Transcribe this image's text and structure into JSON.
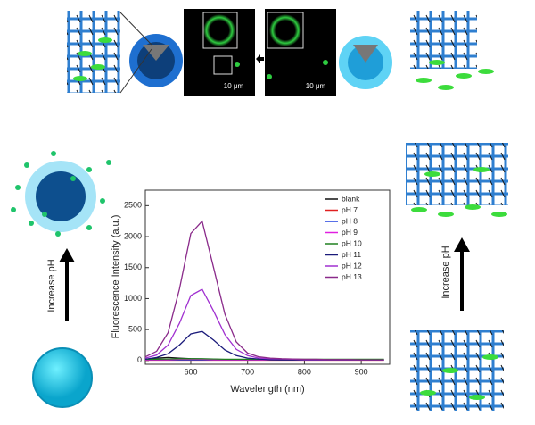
{
  "chart_data": {
    "type": "line",
    "x_label": "Wavelength (nm)",
    "y_label": "Fluorescence Intensity (a.u.)",
    "x": [
      520,
      540,
      560,
      580,
      600,
      620,
      640,
      660,
      680,
      700,
      720,
      740,
      760,
      780,
      800,
      820,
      840,
      860,
      880,
      900,
      920,
      940
    ],
    "series": [
      {
        "name": "blank",
        "color": "#111111",
        "values": [
          20,
          40,
          50,
          40,
          30,
          25,
          20,
          15,
          10,
          10,
          10,
          10,
          10,
          10,
          10,
          10,
          10,
          10,
          10,
          10,
          10,
          10
        ]
      },
      {
        "name": "pH 7",
        "color": "#e02020",
        "values": [
          5,
          5,
          5,
          5,
          5,
          5,
          5,
          5,
          5,
          5,
          5,
          5,
          5,
          5,
          5,
          5,
          5,
          5,
          5,
          5,
          5,
          5
        ]
      },
      {
        "name": "pH 8",
        "color": "#2040e0",
        "values": [
          10,
          10,
          10,
          10,
          10,
          10,
          10,
          10,
          10,
          10,
          10,
          10,
          10,
          10,
          10,
          10,
          10,
          10,
          10,
          10,
          10,
          10
        ]
      },
      {
        "name": "pH 9",
        "color": "#e020e0",
        "values": [
          15,
          15,
          15,
          20,
          20,
          20,
          15,
          15,
          15,
          15,
          15,
          15,
          15,
          15,
          15,
          15,
          15,
          15,
          15,
          15,
          15,
          15
        ]
      },
      {
        "name": "pH 10",
        "color": "#208020",
        "values": [
          20,
          20,
          25,
          30,
          30,
          30,
          25,
          20,
          20,
          20,
          20,
          20,
          20,
          20,
          20,
          20,
          20,
          20,
          20,
          20,
          20,
          20
        ]
      },
      {
        "name": "pH 11",
        "color": "#1a1a7a",
        "values": [
          20,
          50,
          110,
          250,
          430,
          470,
          330,
          170,
          80,
          40,
          25,
          15,
          10,
          10,
          10,
          10,
          10,
          10,
          10,
          10,
          10,
          10
        ]
      },
      {
        "name": "pH 12",
        "color": "#a030d0",
        "values": [
          40,
          90,
          250,
          600,
          1050,
          1150,
          800,
          420,
          180,
          80,
          40,
          30,
          25,
          20,
          15,
          15,
          10,
          10,
          10,
          10,
          10,
          10
        ]
      },
      {
        "name": "pH 13",
        "color": "#8a2a8a",
        "values": [
          60,
          150,
          450,
          1150,
          2050,
          2250,
          1500,
          750,
          300,
          120,
          60,
          40,
          30,
          25,
          20,
          20,
          15,
          15,
          15,
          10,
          10,
          10
        ]
      }
    ],
    "xlim": [
      520,
      950
    ],
    "ylim": [
      -60,
      2750
    ],
    "xticks": [
      600,
      700,
      800,
      900
    ],
    "yticks": [
      0,
      500,
      1000,
      1500,
      2000,
      2500
    ],
    "legend": "upper right"
  },
  "image_labels": [
    "10 μm",
    "10 μm"
  ],
  "arrow_labels": [
    "Increase pH",
    "Increase pH"
  ]
}
